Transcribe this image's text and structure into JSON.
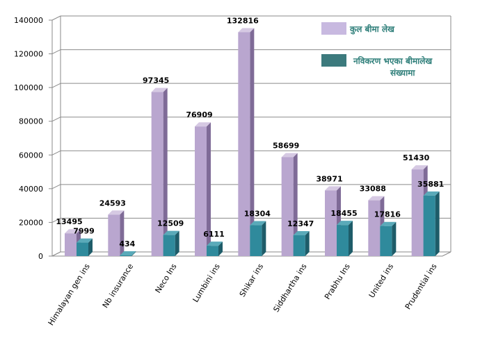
{
  "chart_data": {
    "type": "bar",
    "style": "3d-clustered-column",
    "categories": [
      "Himalayan gen ins",
      "Nb insurance",
      "Neco Ins",
      "Lumbini ins",
      "Shikar ins",
      "Siddhartha ins",
      "Prabhu Ins",
      "United ins",
      "Prudential ins"
    ],
    "series": [
      {
        "name": "कुल बीमा लेख",
        "color": "#b9a6cf",
        "values": [
          13495,
          24593,
          97345,
          76909,
          132816,
          58699,
          38971,
          33088,
          51430
        ]
      },
      {
        "name": "नविकरण भएका बीमालेख संख्यामा",
        "color": "#2f8a9c",
        "values": [
          7999,
          434,
          12509,
          6111,
          18304,
          12347,
          18455,
          17816,
          35881
        ]
      }
    ],
    "ylim": [
      0,
      140000
    ],
    "yticks": [
      0,
      20000,
      40000,
      60000,
      80000,
      100000,
      120000,
      140000
    ],
    "grid": true,
    "legend_position": "top-right",
    "title": "",
    "xlabel": "",
    "ylabel": ""
  }
}
